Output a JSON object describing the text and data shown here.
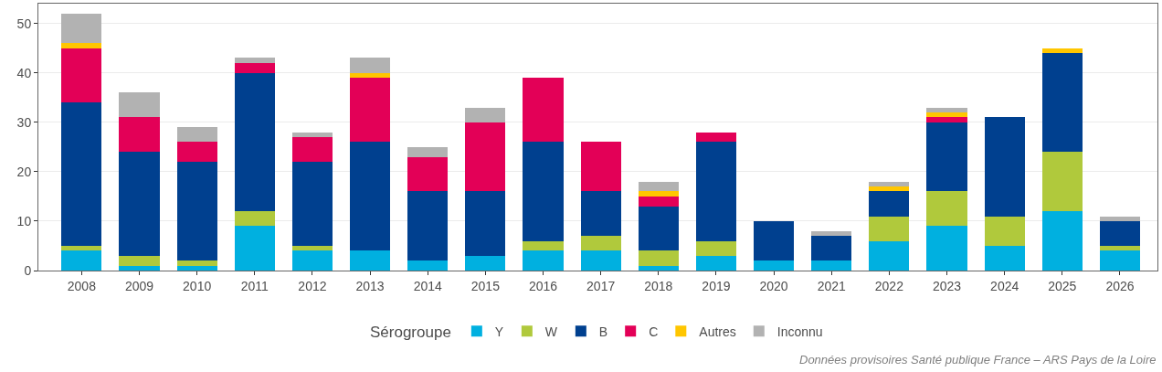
{
  "chart_data": {
    "type": "bar",
    "stacked": true,
    "legend_title": "Sérogroupe",
    "legend": "bottom",
    "grid": "y",
    "categories": [
      "2008",
      "2009",
      "2010",
      "2011",
      "2012",
      "2013",
      "2014",
      "2015",
      "2016",
      "2017",
      "2018",
      "2019",
      "2020",
      "2021",
      "2022",
      "2023",
      "2024",
      "2025",
      "2026"
    ],
    "ylim": [
      0,
      54
    ],
    "yticks": [
      0,
      10,
      20,
      30,
      40,
      50
    ],
    "series": [
      {
        "name": "Y",
        "color": "#00b0e0",
        "values": [
          4,
          1,
          1,
          9,
          4,
          4,
          2,
          3,
          4,
          4,
          1,
          3,
          2,
          2,
          6,
          9,
          5,
          12,
          4
        ]
      },
      {
        "name": "W",
        "color": "#b0c93c",
        "values": [
          1,
          2,
          1,
          3,
          1,
          0,
          0,
          0,
          2,
          3,
          3,
          3,
          0,
          0,
          5,
          7,
          6,
          12,
          1
        ]
      },
      {
        "name": "B",
        "color": "#00408f",
        "values": [
          29,
          21,
          20,
          28,
          17,
          22,
          14,
          13,
          20,
          9,
          9,
          20,
          8,
          5,
          5,
          14,
          20,
          20,
          5
        ]
      },
      {
        "name": "C",
        "color": "#e30057",
        "values": [
          11,
          7,
          4,
          2,
          5,
          13,
          7,
          14,
          13,
          10,
          2,
          2,
          0,
          0,
          0,
          1,
          0,
          0,
          0
        ]
      },
      {
        "name": "Autres",
        "color": "#ffc600",
        "values": [
          1,
          0,
          0,
          0,
          0,
          1,
          0,
          0,
          0,
          0,
          1,
          0,
          0,
          0,
          1,
          1,
          0,
          1,
          0
        ]
      },
      {
        "name": "Inconnu",
        "color": "#b2b2b2",
        "values": [
          6,
          5,
          3,
          1,
          1,
          3,
          2,
          3,
          0,
          0,
          2,
          0,
          0,
          1,
          1,
          1,
          0,
          0,
          1
        ]
      }
    ],
    "annotations": [
      "Données provisoires Santé publique France – ARS Pays de la Loire"
    ]
  }
}
